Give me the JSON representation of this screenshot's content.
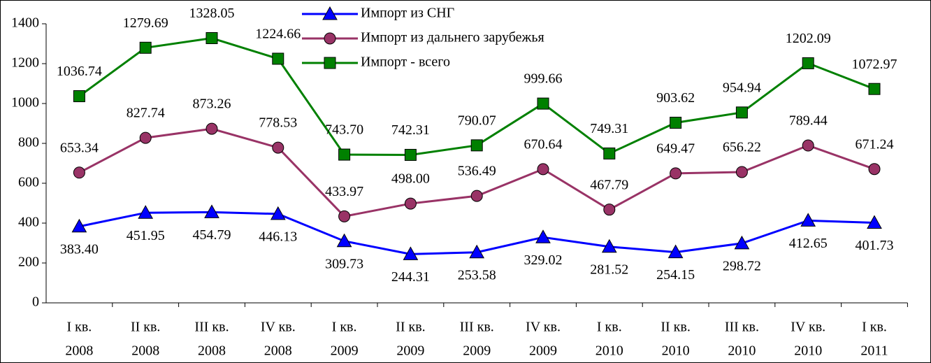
{
  "chart_data": {
    "type": "line",
    "categories": [
      [
        "I кв.",
        "2008"
      ],
      [
        "II кв.",
        "2008"
      ],
      [
        "III кв.",
        "2008"
      ],
      [
        "IV кв.",
        "2008"
      ],
      [
        "I кв.",
        "2009"
      ],
      [
        "II кв.",
        "2009"
      ],
      [
        "III кв.",
        "2009"
      ],
      [
        "IV кв.",
        "2009"
      ],
      [
        "I кв.",
        "2010"
      ],
      [
        "II кв.",
        "2010"
      ],
      [
        "III кв.",
        "2010"
      ],
      [
        "IV кв.",
        "2010"
      ],
      [
        "I кв.",
        "2011"
      ]
    ],
    "series": [
      {
        "name": "Импорт из СНГ",
        "color": "#0000ff",
        "marker": "triangle",
        "label_position": "below",
        "values": [
          383.4,
          451.95,
          454.79,
          446.13,
          309.73,
          244.31,
          253.58,
          329.02,
          281.52,
          254.15,
          298.72,
          412.65,
          401.73
        ],
        "value_labels": [
          "383.40",
          "451.95",
          "454.79",
          "446.13",
          "309.73",
          "244.31",
          "253.58",
          "329.02",
          "281.52",
          "254.15",
          "298.72",
          "412.65",
          "401.73"
        ]
      },
      {
        "name": "Импорт из дальнего зарубежья",
        "color": "#993366",
        "marker": "circle",
        "label_position": "above",
        "values": [
          653.34,
          827.74,
          873.26,
          778.53,
          433.97,
          498.0,
          536.49,
          670.64,
          467.79,
          649.47,
          656.22,
          789.44,
          671.24
        ],
        "value_labels": [
          "653.34",
          "827.74",
          "873.26",
          "778.53",
          "433.97",
          "498.00",
          "536.49",
          "670.64",
          "467.79",
          "649.47",
          "656.22",
          "789.44",
          "671.24"
        ]
      },
      {
        "name": "Импорт - всего",
        "color": "#008000",
        "marker": "square",
        "label_position": "above",
        "values": [
          1036.74,
          1279.69,
          1328.05,
          1224.66,
          743.7,
          742.31,
          790.07,
          999.66,
          749.31,
          903.62,
          954.94,
          1202.09,
          1072.97
        ],
        "value_labels": [
          "1036.74",
          "1279.69",
          "1328.05",
          "1224.66",
          "743.70",
          "742.31",
          "790.07",
          "999.66",
          "749.31",
          "903.62",
          "954.94",
          "1202.09",
          "1072.97"
        ]
      }
    ],
    "ylim": [
      0,
      1400
    ],
    "yticks": [
      0,
      200,
      400,
      600,
      800,
      1000,
      1200,
      1400
    ],
    "grid": false,
    "legend": "top"
  }
}
